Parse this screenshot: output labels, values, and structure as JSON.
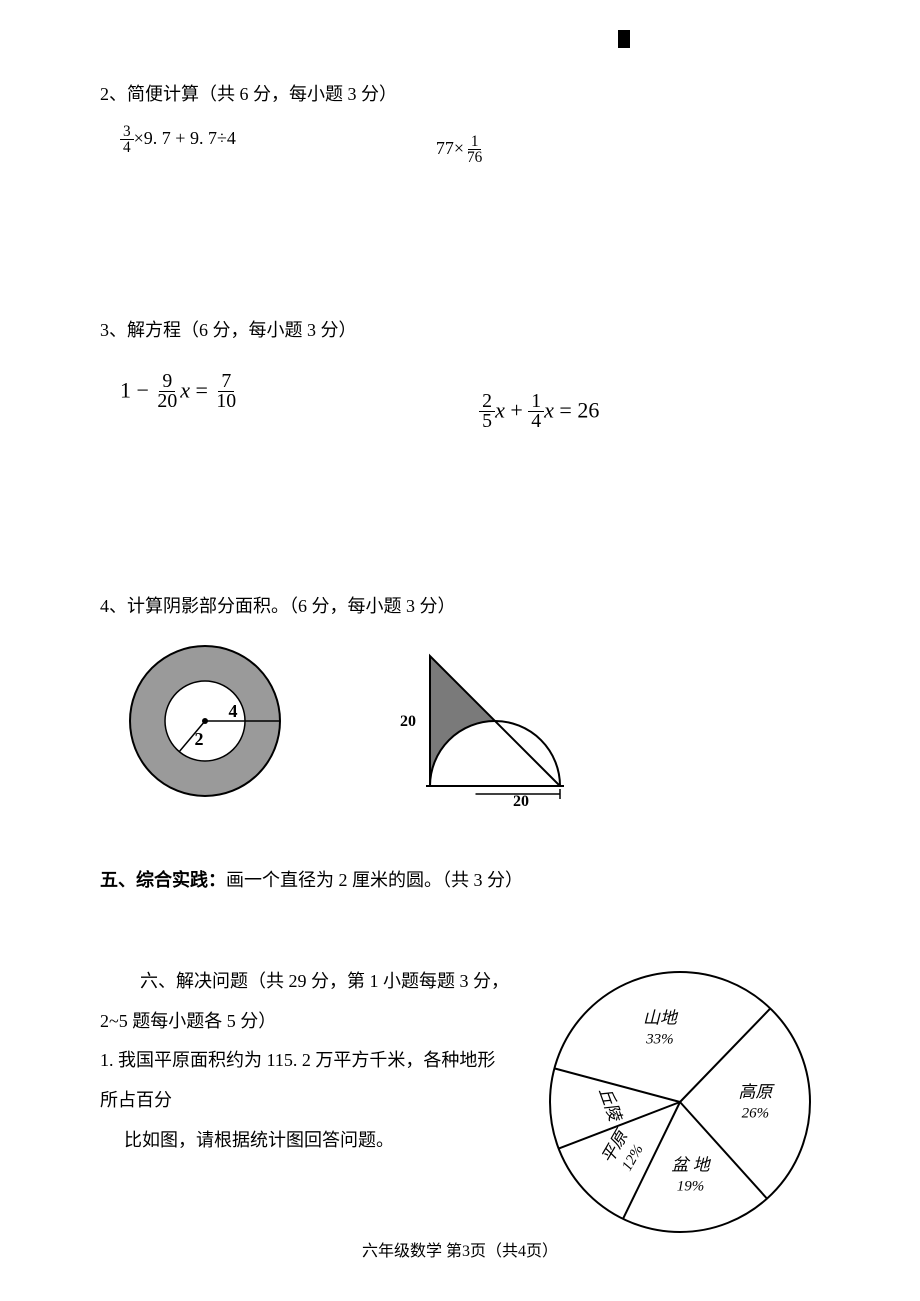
{
  "q2": {
    "title": "2、简便计算（共 6 分，每小题 3 分）",
    "eq1": {
      "frac_num": "3",
      "frac_den": "4",
      "rest": "×9. 7 + 9. 7÷4"
    },
    "eq2": {
      "left": "77×",
      "frac_num": "1",
      "frac_den": "76"
    }
  },
  "q3": {
    "title": "3、解方程（6 分，每小题 3 分）",
    "eq1": {
      "one": "1",
      "minus": " − ",
      "f1n": "9",
      "f1d": "20",
      "x": "x",
      "eq": " = ",
      "f2n": "7",
      "f2d": "10"
    },
    "eq2": {
      "f1n": "2",
      "f1d": "5",
      "x1": "x",
      "plus": " + ",
      "f2n": "1",
      "f2d": "4",
      "x2": "x",
      "eq": " = ",
      "rhs": "26"
    }
  },
  "q4": {
    "title": "4、计算阴影部分面积。（6 分，每小题 3 分）",
    "annulus": {
      "outer_r": 75,
      "inner_r": 40,
      "fill": "#9a9a9a",
      "inner_fill": "#ffffff",
      "stroke": "#000000",
      "label_outer": "4",
      "label_inner": "2",
      "label_fontsize": 18
    },
    "tri_semi": {
      "side": 130,
      "label_v": "20",
      "label_h": "20",
      "stroke": "#000000",
      "fill_shade": "#7a7a7a",
      "label_fontsize": 16
    }
  },
  "q5": {
    "title_bold": "五、综合实践：",
    "title_rest": "画一个直径为 2 厘米的圆。（共 3 分）"
  },
  "q6": {
    "title": "六、解决问题（共 29 分，第 1 小题每题 3 分，2~5 题每小题各 5 分）",
    "q1_line1": "1. 我国平原面积约为 115. 2 万平方千米，各种地形所占百分",
    "q1_line2": "比如图，请根据统计图回答问题。",
    "pie": {
      "type": "pie",
      "radius": 130,
      "stroke": "#000000",
      "stroke_width": 2,
      "background": "#ffffff",
      "label_fontsize": 17,
      "pct_fontsize": 15,
      "slices": [
        {
          "label": "山地",
          "pct": "33%",
          "start": -165,
          "end": -46
        },
        {
          "label": "高原",
          "pct": "26%",
          "start": -46,
          "end": 48
        },
        {
          "label": "盆 地",
          "pct": "19%",
          "start": 48,
          "end": 116
        },
        {
          "label": "平原",
          "pct": "12%",
          "start": 116,
          "end": 159,
          "rotate": -60
        },
        {
          "label": "丘陵",
          "pct": "",
          "start": 159,
          "end": 195,
          "rotate": 70
        }
      ]
    }
  },
  "footer": "六年级数学  第3页（共4页）"
}
